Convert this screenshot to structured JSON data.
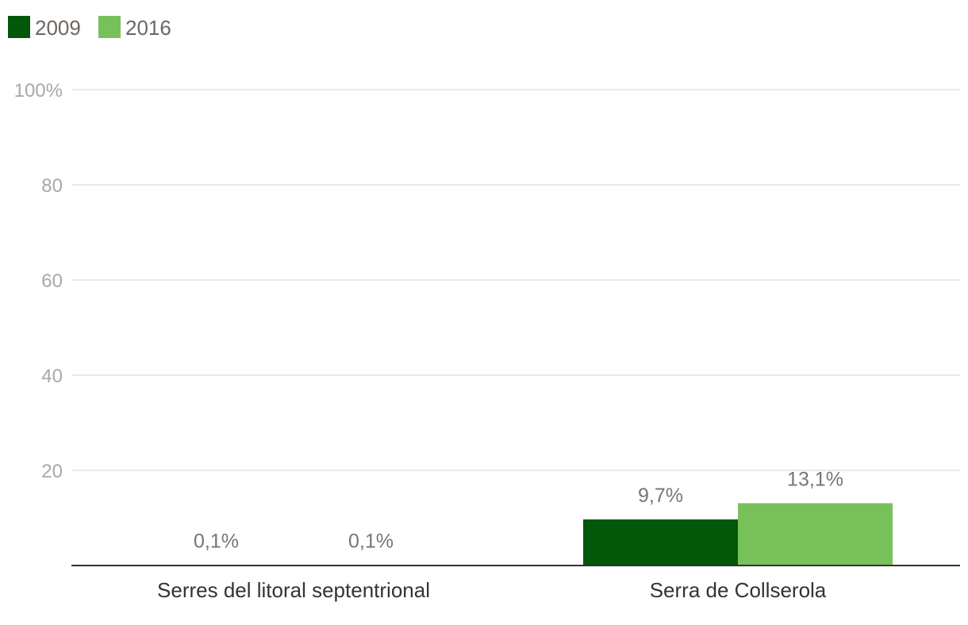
{
  "chart_data": {
    "type": "bar",
    "categories": [
      "Serres del litoral septentrional",
      "Serra de Collserola"
    ],
    "series": [
      {
        "name": "2009",
        "color": "#035709",
        "values": [
          0.1,
          9.7
        ],
        "labels": [
          "0,1%",
          "9,7%"
        ]
      },
      {
        "name": "2016",
        "color": "#78c15a",
        "values": [
          0.1,
          13.1
        ],
        "labels": [
          "0,1%",
          "13,1%"
        ]
      }
    ],
    "ylim": [
      0,
      100
    ],
    "yticks": [
      20,
      40,
      60,
      80,
      100
    ],
    "ytick_labels": [
      "20",
      "40",
      "60",
      "80",
      "100%"
    ],
    "grid": true,
    "legend_position": "top-left",
    "title": "",
    "xlabel": "",
    "ylabel": ""
  }
}
